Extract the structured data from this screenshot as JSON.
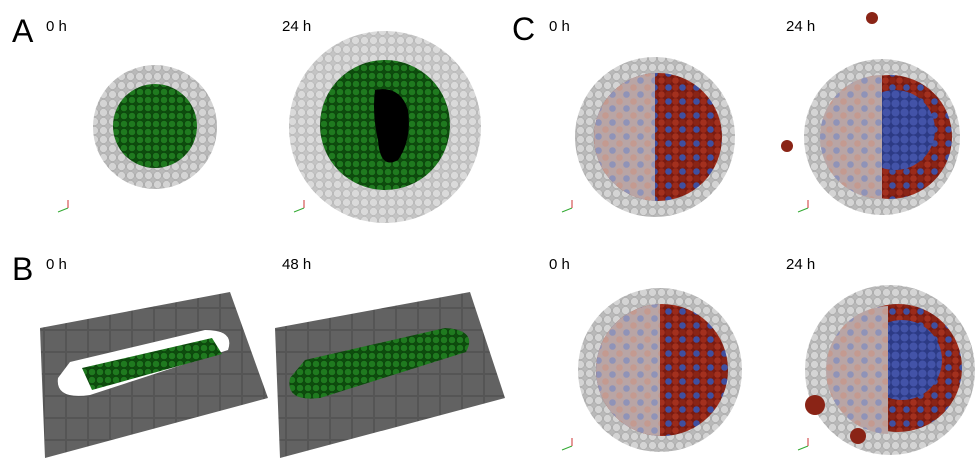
{
  "panels": [
    {
      "label": "A",
      "images": [
        {
          "time": "0 h"
        },
        {
          "time": "24 h"
        }
      ]
    },
    {
      "label": "B",
      "images": [
        {
          "time": "0 h"
        },
        {
          "time": "48 h"
        }
      ]
    },
    {
      "label": "C",
      "images": [
        {
          "time": "0 h"
        },
        {
          "time": "24 h"
        },
        {
          "time": "0 h"
        },
        {
          "time": "24 h"
        }
      ]
    }
  ]
}
